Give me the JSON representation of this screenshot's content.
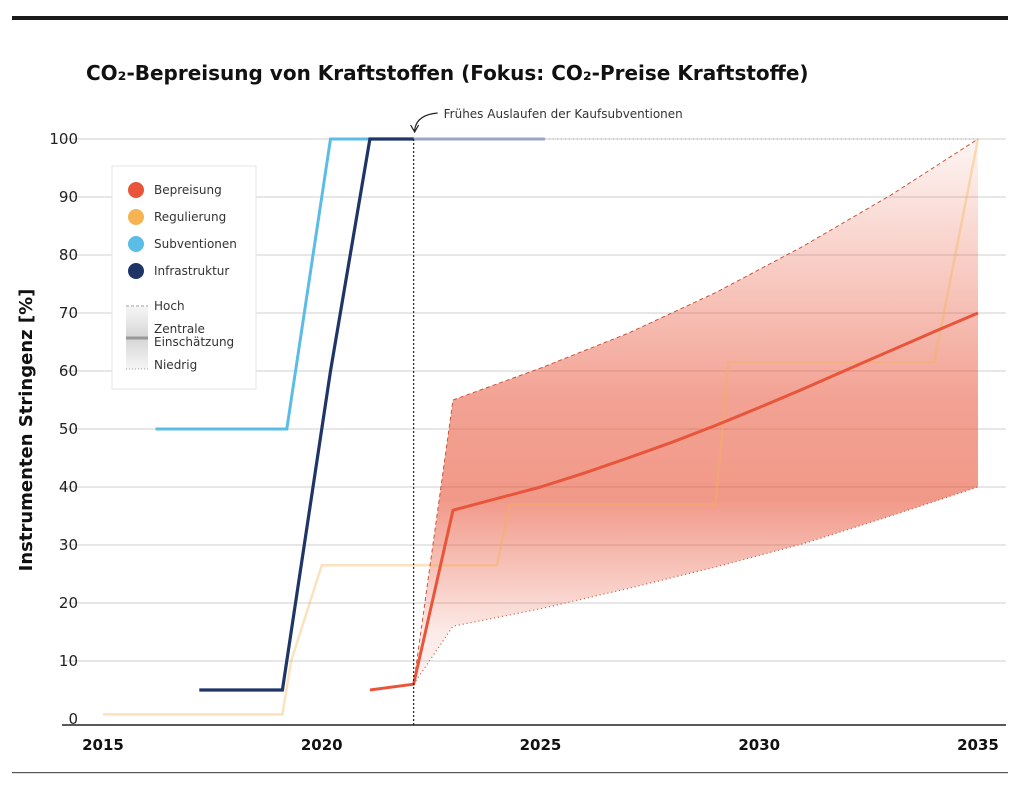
{
  "chart_data": {
    "type": "line",
    "title": "CO₂-Bepreisung von Kraftstoffen (Fokus: CO₂-Preise Kraftstoffe)",
    "ylabel": "Instrumenten Stringenz  [%]",
    "xlabel": "",
    "xlim": [
      2015,
      2035
    ],
    "ylim": [
      0,
      100
    ],
    "x_ticks": [
      "2015",
      "2020",
      "2025",
      "2030",
      "2035"
    ],
    "y_ticks": [
      "0",
      "10",
      "20",
      "30",
      "40",
      "50",
      "60",
      "70",
      "80",
      "90",
      "100"
    ],
    "grid": true,
    "legend_position": "top-left",
    "annotation": {
      "text": "Frühes Auslaufen der Kaufsubventionen",
      "x": 2022.1
    },
    "colors": {
      "bepreisung": "#e8553a",
      "regulierung": "#f5b451",
      "subventionen": "#5bbde6",
      "infrastruktur": "#1f3566",
      "subventionen_faded": "#9aa5c3"
    },
    "legend": {
      "series": [
        "Bepreisung",
        "Regulierung",
        "Subventionen",
        "Infrastruktur"
      ],
      "bands": [
        "Hoch",
        "Zentrale\nEinschätzung",
        "Niedrig"
      ]
    },
    "series": [
      {
        "name": "Subventionen",
        "x": [
          2016.2,
          2019.2,
          2020.2,
          2022.1
        ],
        "y": [
          50,
          50,
          100,
          100
        ],
        "faded": {
          "x": [
            2022.1,
            2025.1
          ],
          "y": [
            100,
            100
          ]
        }
      },
      {
        "name": "Infrastruktur",
        "x": [
          2017.2,
          2019.1,
          2020.2,
          2021.1,
          2022.1
        ],
        "y": [
          5,
          5,
          60,
          100,
          100
        ]
      },
      {
        "name": "Regulierung",
        "x": [
          2015,
          2019.1,
          2019.3,
          2020.0,
          2024.0,
          2024.3,
          2029.0,
          2029.3,
          2034.0,
          2035.0
        ],
        "y": [
          0.8,
          0.8,
          10,
          26.5,
          26.5,
          37,
          37,
          61.5,
          61.5,
          100
        ]
      },
      {
        "name": "Bepreisung",
        "x": [
          2021.1,
          2022.1,
          2023.0,
          2024.0,
          2025.0,
          2026.0,
          2027.0,
          2028.0,
          2029.0,
          2030.0,
          2031.0,
          2032.0,
          2033.0,
          2034.0,
          2035.0
        ],
        "y": [
          5,
          6,
          36,
          38,
          40,
          42.4,
          45,
          47.7,
          50.6,
          53.7,
          56.9,
          60.2,
          63.5,
          66.8,
          70
        ]
      },
      {
        "name": "Hoch",
        "x": [
          2022.1,
          2023.0,
          2025.0,
          2027.0,
          2029.0,
          2031.0,
          2033.0,
          2035.0
        ],
        "y": [
          6,
          55,
          60.5,
          66.5,
          73.5,
          81.5,
          90.3,
          100
        ]
      },
      {
        "name": "Niedrig",
        "x": [
          2022.1,
          2023.0,
          2025.0,
          2027.0,
          2029.0,
          2031.0,
          2033.0,
          2035.0
        ],
        "y": [
          6,
          16,
          19,
          22.5,
          26.2,
          30.2,
          35,
          40
        ]
      }
    ]
  }
}
